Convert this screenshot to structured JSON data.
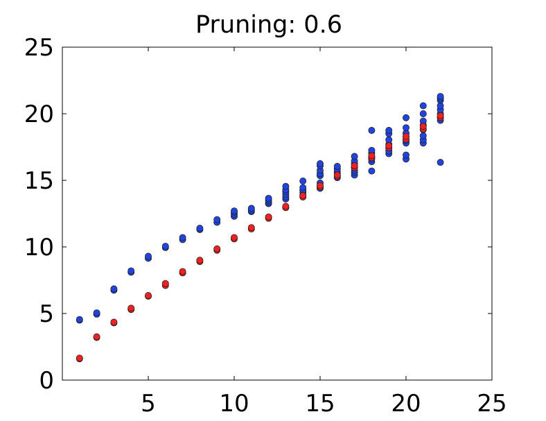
{
  "chart_data": {
    "type": "scatter",
    "title": "Pruning: 0.6",
    "xlabel": "",
    "ylabel": "",
    "xlim": [
      0,
      25
    ],
    "ylim": [
      0,
      25
    ],
    "xticks": [
      {
        "value": 5,
        "label": "5"
      },
      {
        "value": 10,
        "label": "10"
      },
      {
        "value": 15,
        "label": "15"
      },
      {
        "value": 20,
        "label": "20"
      },
      {
        "value": 25,
        "label": "25"
      }
    ],
    "yticks": [
      {
        "value": 0,
        "label": "0"
      },
      {
        "value": 5,
        "label": "5"
      },
      {
        "value": 10,
        "label": "10"
      },
      {
        "value": 15,
        "label": "15"
      },
      {
        "value": 20,
        "label": "20"
      },
      {
        "value": 25,
        "label": "25"
      }
    ],
    "grid": false,
    "legend": false,
    "colors": {
      "blue": "#2244dd",
      "red": "#ee2222",
      "edge": "#1a1a1a",
      "axis": "#000000"
    },
    "series": [
      {
        "color": "#2244dd",
        "points": [
          [
            1,
            4.5
          ],
          [
            1,
            4.55
          ],
          [
            2,
            4.95
          ],
          [
            2,
            5.05
          ],
          [
            3,
            6.75
          ],
          [
            3,
            6.85
          ],
          [
            4,
            8.1
          ],
          [
            4,
            8.2
          ],
          [
            5,
            9.15
          ],
          [
            5,
            9.3
          ],
          [
            6,
            9.95
          ],
          [
            6,
            10.05
          ],
          [
            7,
            10.55
          ],
          [
            7,
            10.7
          ],
          [
            8,
            11.3
          ],
          [
            8,
            11.4
          ],
          [
            9,
            11.85
          ],
          [
            9,
            12.05
          ],
          [
            10,
            12.3
          ],
          [
            10,
            12.45
          ],
          [
            10,
            12.6
          ],
          [
            10,
            12.7
          ],
          [
            11,
            12.65
          ],
          [
            11,
            12.75
          ],
          [
            11,
            12.9
          ],
          [
            12,
            13.25
          ],
          [
            12,
            13.35
          ],
          [
            12,
            13.5
          ],
          [
            12,
            13.65
          ],
          [
            13,
            13.6
          ],
          [
            13,
            13.75
          ],
          [
            13,
            13.95
          ],
          [
            13,
            14.15
          ],
          [
            13,
            14.3
          ],
          [
            13,
            14.55
          ],
          [
            14,
            13.9
          ],
          [
            14,
            14.1
          ],
          [
            14,
            14.25
          ],
          [
            14,
            14.45
          ],
          [
            14,
            14.95
          ],
          [
            15,
            14.4
          ],
          [
            15,
            14.6
          ],
          [
            15,
            14.8
          ],
          [
            15,
            15.35
          ],
          [
            15,
            15.5
          ],
          [
            15,
            15.75
          ],
          [
            15,
            16.1
          ],
          [
            15,
            16.25
          ],
          [
            16,
            15.2
          ],
          [
            16,
            15.5
          ],
          [
            16,
            15.65
          ],
          [
            16,
            15.85
          ],
          [
            16,
            16.05
          ],
          [
            17,
            15.4
          ],
          [
            17,
            15.6
          ],
          [
            17,
            15.75
          ],
          [
            17,
            15.95
          ],
          [
            17,
            16.25
          ],
          [
            17,
            16.45
          ],
          [
            17,
            16.8
          ],
          [
            18,
            15.7
          ],
          [
            18,
            16.4
          ],
          [
            18,
            16.6
          ],
          [
            18,
            16.75
          ],
          [
            18,
            17.05
          ],
          [
            18,
            17.25
          ],
          [
            18,
            18.75
          ],
          [
            19,
            17.0
          ],
          [
            19,
            17.2
          ],
          [
            19,
            17.45
          ],
          [
            19,
            17.7
          ],
          [
            19,
            18.05
          ],
          [
            19,
            18.5
          ],
          [
            19,
            18.75
          ],
          [
            20,
            16.6
          ],
          [
            20,
            16.9
          ],
          [
            20,
            17.8
          ],
          [
            20,
            18.0
          ],
          [
            20,
            18.3
          ],
          [
            20,
            18.55
          ],
          [
            20,
            18.95
          ],
          [
            20,
            19.7
          ],
          [
            21,
            17.8
          ],
          [
            21,
            18.05
          ],
          [
            21,
            18.35
          ],
          [
            21,
            18.8
          ],
          [
            21,
            19.15
          ],
          [
            21,
            19.45
          ],
          [
            21,
            20.0
          ],
          [
            21,
            20.6
          ],
          [
            22,
            16.35
          ],
          [
            22,
            19.5
          ],
          [
            22,
            19.7
          ],
          [
            22,
            20.0
          ],
          [
            22,
            20.3
          ],
          [
            22,
            20.6
          ],
          [
            22,
            21.0
          ],
          [
            22,
            21.15
          ],
          [
            22,
            21.3
          ]
        ]
      },
      {
        "color": "#ee2222",
        "points": [
          [
            1,
            1.6
          ],
          [
            1,
            1.65
          ],
          [
            2,
            3.2
          ],
          [
            2,
            3.25
          ],
          [
            3,
            4.3
          ],
          [
            3,
            4.35
          ],
          [
            4,
            5.3
          ],
          [
            4,
            5.4
          ],
          [
            5,
            6.3
          ],
          [
            5,
            6.35
          ],
          [
            6,
            7.1
          ],
          [
            6,
            7.25
          ],
          [
            7,
            8.05
          ],
          [
            7,
            8.15
          ],
          [
            8,
            8.9
          ],
          [
            8,
            9.0
          ],
          [
            9,
            9.75
          ],
          [
            9,
            9.85
          ],
          [
            10,
            10.6
          ],
          [
            10,
            10.7
          ],
          [
            11,
            11.35
          ],
          [
            11,
            11.45
          ],
          [
            12,
            12.15
          ],
          [
            12,
            12.25
          ],
          [
            13,
            12.95
          ],
          [
            13,
            13.05
          ],
          [
            14,
            13.75
          ],
          [
            14,
            13.85
          ],
          [
            15,
            14.5
          ],
          [
            15,
            14.6
          ],
          [
            16,
            15.3
          ],
          [
            16,
            15.4
          ],
          [
            17,
            15.95
          ],
          [
            17,
            16.1
          ],
          [
            18,
            16.7
          ],
          [
            18,
            16.85
          ],
          [
            19,
            17.45
          ],
          [
            19,
            17.6
          ],
          [
            20,
            18.1
          ],
          [
            20,
            18.3
          ],
          [
            21,
            18.85
          ],
          [
            21,
            19.05
          ],
          [
            22,
            19.7
          ],
          [
            22,
            19.85
          ]
        ]
      }
    ]
  }
}
